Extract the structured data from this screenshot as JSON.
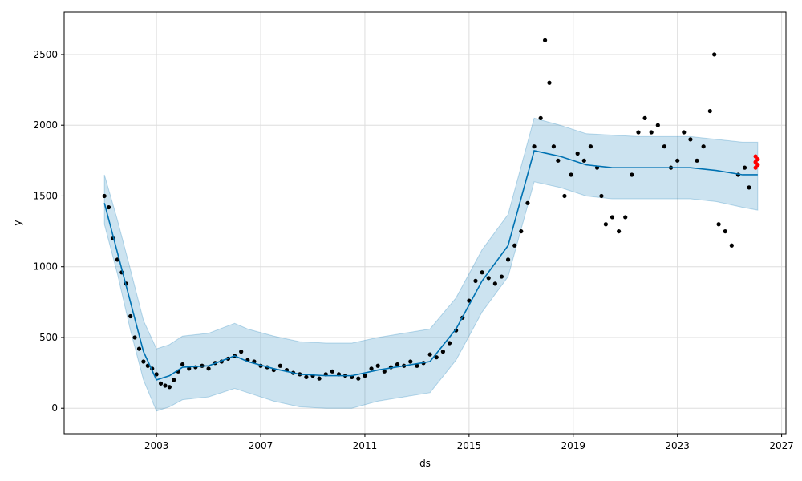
{
  "chart_data": {
    "type": "scatter",
    "title": "",
    "xlabel": "ds",
    "ylabel": "y",
    "xlim": [
      "1999-06-15",
      "2027-03-01"
    ],
    "ylim": [
      -180,
      2800
    ],
    "x_ticks": [
      "2003",
      "2007",
      "2011",
      "2015",
      "2019",
      "2023",
      "2027"
    ],
    "y_ticks": [
      0,
      500,
      1000,
      1500,
      2000,
      2500
    ],
    "grid": true,
    "legend": "none",
    "colors": {
      "observed": "#000000",
      "recent": "#ff0000",
      "forecast": "#0072b2",
      "interval": "#0072b2"
    },
    "series": [
      {
        "kind": "observed",
        "points": [
          [
            "2001-01",
            1500
          ],
          [
            "2001-03",
            1420
          ],
          [
            "2001-05",
            1200
          ],
          [
            "2001-07",
            1050
          ],
          [
            "2001-09",
            960
          ],
          [
            "2001-11",
            880
          ],
          [
            "2002-01",
            650
          ],
          [
            "2002-03",
            500
          ],
          [
            "2002-05",
            420
          ],
          [
            "2002-07",
            330
          ],
          [
            "2002-09",
            300
          ],
          [
            "2002-11",
            280
          ],
          [
            "2003-01",
            240
          ],
          [
            "2003-03",
            175
          ],
          [
            "2003-05",
            160
          ],
          [
            "2003-07",
            150
          ],
          [
            "2003-09",
            200
          ],
          [
            "2003-11",
            260
          ],
          [
            "2004-01",
            310
          ],
          [
            "2004-04",
            280
          ],
          [
            "2004-07",
            290
          ],
          [
            "2004-10",
            300
          ],
          [
            "2005-01",
            280
          ],
          [
            "2005-04",
            320
          ],
          [
            "2005-07",
            330
          ],
          [
            "2005-10",
            350
          ],
          [
            "2006-01",
            370
          ],
          [
            "2006-04",
            400
          ],
          [
            "2006-07",
            340
          ],
          [
            "2006-10",
            330
          ],
          [
            "2007-01",
            300
          ],
          [
            "2007-04",
            290
          ],
          [
            "2007-07",
            270
          ],
          [
            "2007-10",
            300
          ],
          [
            "2008-01",
            270
          ],
          [
            "2008-04",
            250
          ],
          [
            "2008-07",
            240
          ],
          [
            "2008-10",
            220
          ],
          [
            "2009-01",
            230
          ],
          [
            "2009-04",
            210
          ],
          [
            "2009-07",
            240
          ],
          [
            "2009-10",
            260
          ],
          [
            "2010-01",
            240
          ],
          [
            "2010-04",
            230
          ],
          [
            "2010-07",
            220
          ],
          [
            "2010-10",
            210
          ],
          [
            "2011-01",
            230
          ],
          [
            "2011-04",
            280
          ],
          [
            "2011-07",
            300
          ],
          [
            "2011-10",
            260
          ],
          [
            "2012-01",
            290
          ],
          [
            "2012-04",
            310
          ],
          [
            "2012-07",
            300
          ],
          [
            "2012-10",
            330
          ],
          [
            "2013-01",
            300
          ],
          [
            "2013-04",
            320
          ],
          [
            "2013-07",
            380
          ],
          [
            "2013-10",
            360
          ],
          [
            "2014-01",
            400
          ],
          [
            "2014-04",
            460
          ],
          [
            "2014-07",
            550
          ],
          [
            "2014-10",
            640
          ],
          [
            "2015-01",
            760
          ],
          [
            "2015-04",
            900
          ],
          [
            "2015-07",
            960
          ],
          [
            "2015-10",
            920
          ],
          [
            "2016-01",
            880
          ],
          [
            "2016-04",
            930
          ],
          [
            "2016-07",
            1050
          ],
          [
            "2016-10",
            1150
          ],
          [
            "2017-01",
            1250
          ],
          [
            "2017-04",
            1450
          ],
          [
            "2017-07",
            1850
          ],
          [
            "2017-10",
            2050
          ],
          [
            "2017-12",
            2600
          ],
          [
            "2018-02",
            2300
          ],
          [
            "2018-04",
            1850
          ],
          [
            "2018-06",
            1750
          ],
          [
            "2018-09",
            1500
          ],
          [
            "2018-12",
            1650
          ],
          [
            "2019-03",
            1800
          ],
          [
            "2019-06",
            1750
          ],
          [
            "2019-09",
            1850
          ],
          [
            "2019-12",
            1700
          ],
          [
            "2020-02",
            1500
          ],
          [
            "2020-04",
            1300
          ],
          [
            "2020-07",
            1350
          ],
          [
            "2020-10",
            1250
          ],
          [
            "2021-01",
            1350
          ],
          [
            "2021-04",
            1650
          ],
          [
            "2021-07",
            1950
          ],
          [
            "2021-10",
            2050
          ],
          [
            "2022-01",
            1950
          ],
          [
            "2022-04",
            2000
          ],
          [
            "2022-07",
            1850
          ],
          [
            "2022-10",
            1700
          ],
          [
            "2023-01",
            1750
          ],
          [
            "2023-04",
            1950
          ],
          [
            "2023-07",
            1900
          ],
          [
            "2023-10",
            1750
          ],
          [
            "2024-01",
            1850
          ],
          [
            "2024-04",
            2100
          ],
          [
            "2024-06",
            2500
          ],
          [
            "2024-08",
            1300
          ],
          [
            "2024-11",
            1250
          ],
          [
            "2025-02",
            1150
          ],
          [
            "2025-05",
            1650
          ],
          [
            "2025-08",
            1700
          ],
          [
            "2025-10",
            1560
          ]
        ]
      },
      {
        "kind": "recent",
        "points": [
          [
            "2026-01",
            1700
          ],
          [
            "2026-01",
            1740
          ],
          [
            "2026-01",
            1780
          ],
          [
            "2026-02",
            1760
          ],
          [
            "2026-02",
            1720
          ]
        ]
      },
      {
        "kind": "forecast",
        "points": [
          [
            "2001-01",
            1450
          ],
          [
            "2001-07",
            1100
          ],
          [
            "2002-01",
            750
          ],
          [
            "2002-07",
            400
          ],
          [
            "2003-01",
            200
          ],
          [
            "2003-07",
            230
          ],
          [
            "2004-01",
            290
          ],
          [
            "2005-01",
            300
          ],
          [
            "2006-01",
            370
          ],
          [
            "2006-07",
            330
          ],
          [
            "2007-07",
            280
          ],
          [
            "2008-07",
            240
          ],
          [
            "2009-07",
            230
          ],
          [
            "2010-07",
            230
          ],
          [
            "2011-07",
            270
          ],
          [
            "2012-07",
            300
          ],
          [
            "2013-07",
            330
          ],
          [
            "2014-07",
            560
          ],
          [
            "2015-07",
            900
          ],
          [
            "2016-07",
            1150
          ],
          [
            "2017-07",
            1820
          ],
          [
            "2018-07",
            1780
          ],
          [
            "2019-07",
            1720
          ],
          [
            "2020-07",
            1700
          ],
          [
            "2021-07",
            1700
          ],
          [
            "2022-07",
            1700
          ],
          [
            "2023-07",
            1700
          ],
          [
            "2024-07",
            1680
          ],
          [
            "2025-07",
            1650
          ],
          [
            "2026-02",
            1650
          ]
        ],
        "lower": [
          [
            "2001-01",
            1300
          ],
          [
            "2001-07",
            950
          ],
          [
            "2002-01",
            550
          ],
          [
            "2002-07",
            200
          ],
          [
            "2003-01",
            -20
          ],
          [
            "2003-07",
            10
          ],
          [
            "2004-01",
            60
          ],
          [
            "2005-01",
            80
          ],
          [
            "2006-01",
            140
          ],
          [
            "2006-07",
            110
          ],
          [
            "2007-07",
            50
          ],
          [
            "2008-07",
            10
          ],
          [
            "2009-07",
            0
          ],
          [
            "2010-07",
            0
          ],
          [
            "2011-07",
            50
          ],
          [
            "2012-07",
            80
          ],
          [
            "2013-07",
            110
          ],
          [
            "2014-07",
            340
          ],
          [
            "2015-07",
            680
          ],
          [
            "2016-07",
            930
          ],
          [
            "2017-07",
            1600
          ],
          [
            "2018-07",
            1560
          ],
          [
            "2019-07",
            1500
          ],
          [
            "2020-07",
            1480
          ],
          [
            "2021-07",
            1480
          ],
          [
            "2022-07",
            1480
          ],
          [
            "2023-07",
            1480
          ],
          [
            "2024-07",
            1460
          ],
          [
            "2025-07",
            1420
          ],
          [
            "2026-02",
            1400
          ]
        ],
        "upper": [
          [
            "2001-01",
            1650
          ],
          [
            "2001-07",
            1330
          ],
          [
            "2002-01",
            980
          ],
          [
            "2002-07",
            620
          ],
          [
            "2003-01",
            420
          ],
          [
            "2003-07",
            450
          ],
          [
            "2004-01",
            510
          ],
          [
            "2005-01",
            530
          ],
          [
            "2006-01",
            600
          ],
          [
            "2006-07",
            560
          ],
          [
            "2007-07",
            510
          ],
          [
            "2008-07",
            470
          ],
          [
            "2009-07",
            460
          ],
          [
            "2010-07",
            460
          ],
          [
            "2011-07",
            500
          ],
          [
            "2012-07",
            530
          ],
          [
            "2013-07",
            560
          ],
          [
            "2014-07",
            780
          ],
          [
            "2015-07",
            1120
          ],
          [
            "2016-07",
            1370
          ],
          [
            "2017-07",
            2050
          ],
          [
            "2018-07",
            2000
          ],
          [
            "2019-07",
            1940
          ],
          [
            "2020-07",
            1930
          ],
          [
            "2021-07",
            1920
          ],
          [
            "2022-07",
            1920
          ],
          [
            "2023-07",
            1920
          ],
          [
            "2024-07",
            1900
          ],
          [
            "2025-07",
            1880
          ],
          [
            "2026-02",
            1880
          ]
        ]
      }
    ]
  }
}
